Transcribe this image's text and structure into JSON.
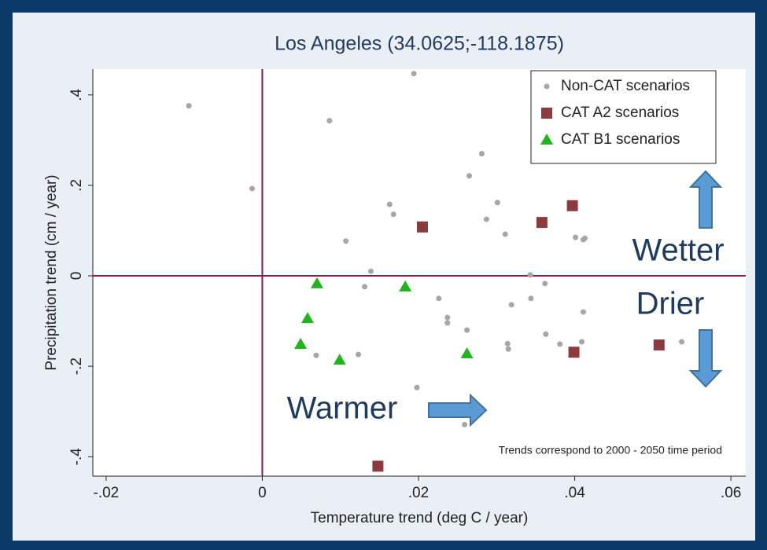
{
  "chart_data": {
    "type": "scatter",
    "title": "Los Angeles (34.0625;-118.1875)",
    "x_label": "Temperature trend (deg C / year)",
    "y_label": "Precipitation trend (cm / year)",
    "xlim": [
      -0.0217,
      0.0619
    ],
    "ylim": [
      -0.443,
      0.457
    ],
    "xticks": [
      {
        "value": -0.02,
        "label": "-.02"
      },
      0,
      {
        "value": 0.02,
        "label": ".02"
      },
      {
        "value": 0.04,
        "label": ".04"
      },
      {
        "value": 0.06,
        "label": ".06"
      }
    ],
    "yticks": [
      {
        "value": -0.4,
        "label": "-.4"
      },
      {
        "value": -0.2,
        "label": "-.2"
      },
      0,
      {
        "value": 0.2,
        "label": ".2"
      },
      {
        "value": 0.4,
        "label": ".4"
      }
    ],
    "reference_lines": {
      "x": 0,
      "y": 0,
      "color": "#8b1a4a"
    },
    "legend": "upper right",
    "series": [
      {
        "name": "Non-CAT scenarios",
        "color": "#a6a6a6",
        "marker": "circle",
        "x": [
          -0.0094,
          -0.0013,
          0.0086,
          0.0194,
          0.0281,
          0.0265,
          0.0301,
          0.0163,
          0.0168,
          0.0287,
          0.0311,
          0.0107,
          0.0401,
          0.0411,
          0.0413,
          0.0139,
          0.0131,
          0.0343,
          0.0362,
          0.0226,
          0.0344,
          0.0319,
          0.0237,
          0.0237,
          0.0411,
          0.0262,
          0.0363,
          0.0314,
          0.0315,
          0.0381,
          0.0409,
          0.0069,
          0.0123,
          0.0537,
          0.0198,
          0.0259
        ],
        "values": [
          0.376,
          0.193,
          0.343,
          0.447,
          0.27,
          0.221,
          0.162,
          0.158,
          0.136,
          0.125,
          0.092,
          0.077,
          0.085,
          0.08,
          0.083,
          0.01,
          -0.024,
          0.002,
          -0.017,
          -0.05,
          -0.05,
          -0.064,
          -0.092,
          -0.104,
          -0.08,
          -0.12,
          -0.129,
          -0.15,
          -0.162,
          -0.151,
          -0.146,
          -0.176,
          -0.174,
          -0.146,
          -0.247,
          -0.329
        ]
      },
      {
        "name": "CAT A2 scenarios",
        "color": "#8b3a3e",
        "marker": "square",
        "x": [
          0.0205,
          0.0358,
          0.0397,
          0.0399,
          0.0508,
          0.0148
        ],
        "values": [
          0.108,
          0.118,
          0.155,
          -0.169,
          -0.153,
          -0.421
        ]
      },
      {
        "name": "CAT B1 scenarios",
        "color": "#1fb51f",
        "marker": "triangle",
        "x": [
          0.007,
          0.0058,
          0.0049,
          0.0099,
          0.0183,
          0.0262
        ],
        "values": [
          -0.017,
          -0.094,
          -0.151,
          -0.186,
          -0.024,
          -0.172
        ]
      }
    ],
    "annotations": [
      "Wetter",
      "Drier",
      "Warmer",
      "Trends correspond to 2000 - 2050 time period"
    ]
  }
}
